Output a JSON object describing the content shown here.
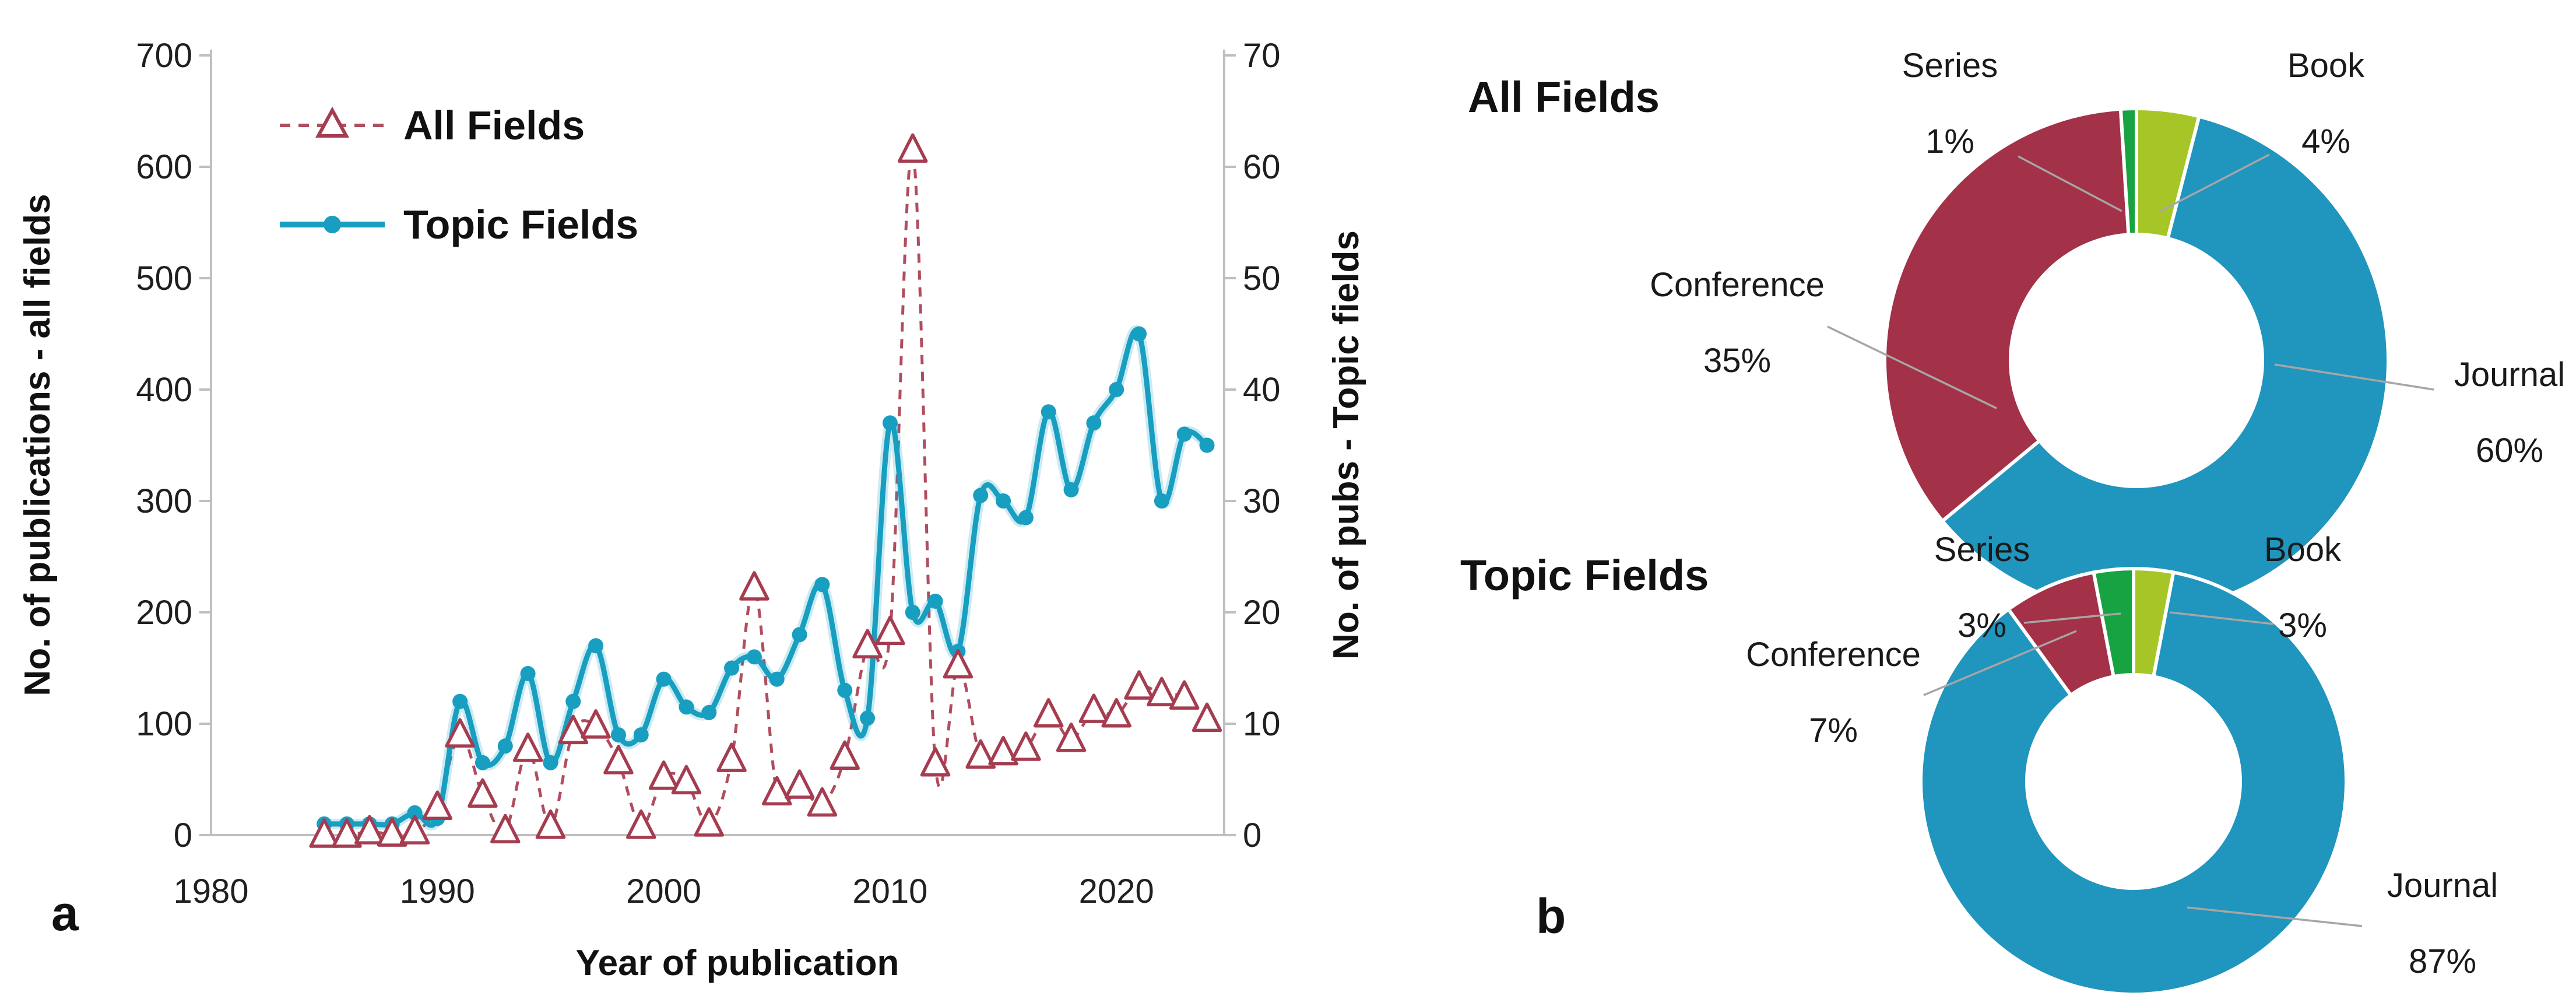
{
  "figure": {
    "panel_a_label": "a",
    "panel_b_label": "b"
  },
  "chart_data": [
    {
      "type": "line",
      "xlabel": "Year of publication",
      "ylabel_left": "No. of publications - all fields",
      "ylabel_right": "No. of pubs - Topic fields",
      "x_ticks": [
        1980,
        1990,
        2000,
        2010,
        2020
      ],
      "ylim_left": [
        0,
        700
      ],
      "ylim_right": [
        0,
        70
      ],
      "yticks_left": [
        0,
        100,
        200,
        300,
        400,
        500,
        600,
        700
      ],
      "yticks_right": [
        0,
        10,
        20,
        30,
        40,
        50,
        60,
        70
      ],
      "grid": false,
      "legend_position": "top-left",
      "years": [
        1985,
        1986,
        1987,
        1988,
        1989,
        1990,
        1991,
        1992,
        1993,
        1994,
        1995,
        1996,
        1997,
        1998,
        1999,
        2000,
        2001,
        2002,
        2003,
        2004,
        2005,
        2006,
        2007,
        2008,
        2009,
        2010,
        2011,
        2012,
        2013,
        2014,
        2015,
        2016,
        2017,
        2018,
        2019,
        2020,
        2021,
        2022,
        2023,
        2024
      ],
      "series": [
        {
          "name": "All Fields",
          "axis": "left",
          "linestyle": "dashed",
          "marker": "triangle-open",
          "color": "#b04d5e",
          "marker_color": "#a53c50",
          "values": [
            0,
            0,
            3,
            1,
            3,
            25,
            90,
            36,
            4,
            77,
            8,
            93,
            98,
            66,
            8,
            52,
            48,
            10,
            68,
            222,
            38,
            44,
            28,
            70,
            170,
            182,
            615,
            64,
            152,
            71,
            74,
            78,
            108,
            86,
            112,
            108,
            133,
            127,
            124,
            104
          ]
        },
        {
          "name": "Topic Fields",
          "axis": "right",
          "linestyle": "solid",
          "marker": "circle",
          "color": "#189ec0",
          "marker_color": "#189ec0",
          "values": [
            1,
            1,
            1,
            1,
            2,
            1.5,
            12,
            6.5,
            8,
            14.5,
            6.5,
            12,
            17,
            9,
            9,
            14,
            11.5,
            11,
            15,
            16,
            14,
            18,
            22.5,
            13,
            10.5,
            37,
            20,
            21,
            16.5,
            30.5,
            30,
            28.5,
            38,
            31,
            37,
            40,
            45,
            30,
            36,
            35
          ]
        }
      ]
    },
    {
      "type": "donut",
      "title": "All Fields",
      "slices": [
        {
          "label": "Book",
          "pct": 4,
          "color": "#a6c627"
        },
        {
          "label": "Journal",
          "pct": 60,
          "color": "#2095bd"
        },
        {
          "label": "Conference",
          "pct": 35,
          "color": "#a33148"
        },
        {
          "label": "Series",
          "pct": 1,
          "color": "#17a341"
        }
      ]
    },
    {
      "type": "donut",
      "title": "Topic Fields",
      "slices": [
        {
          "label": "Book",
          "pct": 3,
          "color": "#a6c627"
        },
        {
          "label": "Journal",
          "pct": 87,
          "color": "#2095bd"
        },
        {
          "label": "Conference",
          "pct": 7,
          "color": "#a33148"
        },
        {
          "label": "Series",
          "pct": 3,
          "color": "#17a341"
        }
      ]
    }
  ],
  "colors": {
    "axis_line": "#bfbfbf",
    "leader_line": "#a6a6a6",
    "text": "#1a1a1a"
  }
}
